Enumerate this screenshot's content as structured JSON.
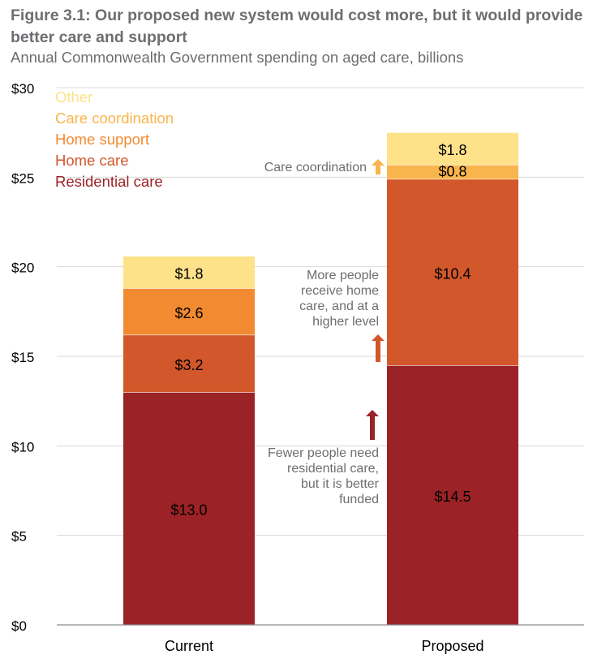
{
  "title": "Figure 3.1: Our proposed new system would cost more, but it would provide better care and support",
  "subtitle": "Annual Commonwealth Government spending on aged care, billions",
  "colors": {
    "residential": "#9b2226",
    "home_care": "#d2572b",
    "home_support": "#f28a32",
    "care_coordination": "#f9b54d",
    "other": "#fde28a",
    "grid": "#d9d9d9",
    "axis_text": "#000000",
    "annotation_text": "#6d6e71"
  },
  "chart_data": {
    "type": "bar",
    "stacked": true,
    "categories": [
      "Current",
      "Proposed"
    ],
    "ylim": [
      0,
      30
    ],
    "yticks": [
      0,
      5,
      10,
      15,
      20,
      25,
      30
    ],
    "ytick_labels": [
      "$0",
      "$5",
      "$10",
      "$15",
      "$20",
      "$25",
      "$30"
    ],
    "grid": true,
    "legend_position": "top-left",
    "series": [
      {
        "name": "Residential care",
        "key": "residential",
        "values": [
          13.0,
          14.5
        ],
        "labels": [
          "$13.0",
          "$14.5"
        ]
      },
      {
        "name": "Home care",
        "key": "home_care",
        "values": [
          3.2,
          10.4
        ],
        "labels": [
          "$3.2",
          "$10.4"
        ]
      },
      {
        "name": "Home support",
        "key": "home_support",
        "values": [
          2.6,
          0
        ],
        "labels": [
          "$2.6",
          ""
        ]
      },
      {
        "name": "Care coordination",
        "key": "care_coordination",
        "values": [
          0,
          0.8
        ],
        "labels": [
          "",
          "$0.8"
        ]
      },
      {
        "name": "Other",
        "key": "other",
        "values": [
          1.8,
          1.8
        ],
        "labels": [
          "$1.8",
          "$1.8"
        ]
      }
    ],
    "legend": [
      "Other",
      "Care coordination",
      "Home support",
      "Home care",
      "Residential care"
    ],
    "annotations": [
      {
        "text": "Care coordination",
        "series": "care_coordination"
      },
      {
        "text": "More people receive home care, and at a higher level",
        "series": "home_care"
      },
      {
        "text": "Fewer people need residential care, but it is better funded",
        "series": "residential"
      }
    ]
  }
}
